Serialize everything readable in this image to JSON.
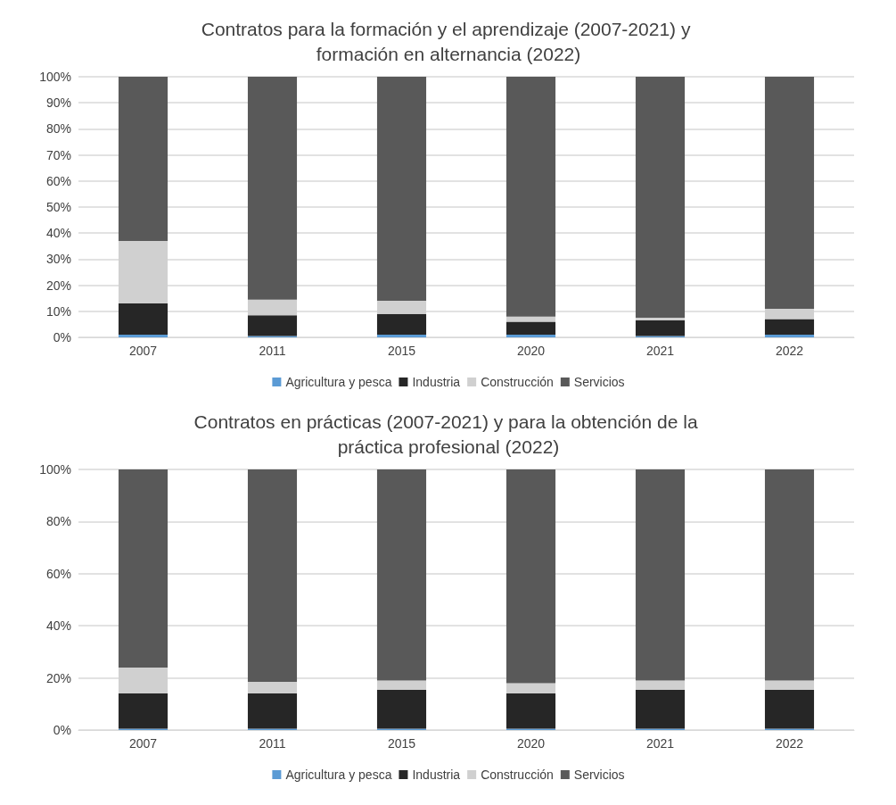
{
  "chart_data": [
    {
      "type": "bar",
      "title": "Contratos para la formación y el aprendizaje (2007-2021) y formación en alternancia (2022)",
      "categories": [
        "2007",
        "2011",
        "2015",
        "2020",
        "2021",
        "2022"
      ],
      "stacked": true,
      "ylim": [
        0,
        100
      ],
      "yticks": [
        {
          "value": 0,
          "label": "0%"
        },
        {
          "value": 10,
          "label": "10%"
        },
        {
          "value": 20,
          "label": "20%"
        },
        {
          "value": 30,
          "label": "30%"
        },
        {
          "value": 40,
          "label": "40%"
        },
        {
          "value": 50,
          "label": "50%"
        },
        {
          "value": 60,
          "label": "60%"
        },
        {
          "value": 70,
          "label": "70%"
        },
        {
          "value": 80,
          "label": "80%"
        },
        {
          "value": 90,
          "label": "90%"
        },
        {
          "value": 100,
          "label": "100%"
        }
      ],
      "grid": "y",
      "legend": "bottom",
      "series": [
        {
          "name": "Agricultura y pesca",
          "color": "#5b9bd5",
          "values": [
            1,
            0.5,
            1,
            1,
            0.5,
            1
          ]
        },
        {
          "name": "Industria",
          "color": "#262626",
          "values": [
            12,
            8,
            8,
            5,
            6,
            6
          ]
        },
        {
          "name": "Construcción",
          "color": "#d0d0d0",
          "values": [
            24,
            6,
            5,
            2,
            1,
            4
          ]
        },
        {
          "name": "Servicios",
          "color": "#595959",
          "values": [
            63,
            85.5,
            86,
            92,
            92.5,
            89
          ]
        }
      ]
    },
    {
      "type": "bar",
      "title": "Contratos en prácticas (2007-2021) y para la obtención de la práctica profesional (2022)",
      "categories": [
        "2007",
        "2011",
        "2015",
        "2020",
        "2021",
        "2022"
      ],
      "stacked": true,
      "ylim": [
        0,
        100
      ],
      "yticks": [
        {
          "value": 0,
          "label": "0%"
        },
        {
          "value": 20,
          "label": "20%"
        },
        {
          "value": 40,
          "label": "40%"
        },
        {
          "value": 60,
          "label": "60%"
        },
        {
          "value": 80,
          "label": "80%"
        },
        {
          "value": 100,
          "label": "100%"
        }
      ],
      "grid": "y",
      "legend": "bottom",
      "series": [
        {
          "name": "Agricultura y pesca",
          "color": "#5b9bd5",
          "values": [
            0.5,
            0.5,
            0.5,
            0.5,
            0.5,
            0.5
          ]
        },
        {
          "name": "Industria",
          "color": "#262626",
          "values": [
            13.5,
            13.5,
            15,
            13.5,
            15,
            15
          ]
        },
        {
          "name": "Construcción",
          "color": "#d0d0d0",
          "values": [
            10,
            4.5,
            3.5,
            4,
            3.5,
            3.5
          ]
        },
        {
          "name": "Servicios",
          "color": "#595959",
          "values": [
            76,
            81.5,
            81,
            82,
            81,
            81
          ]
        }
      ]
    }
  ]
}
